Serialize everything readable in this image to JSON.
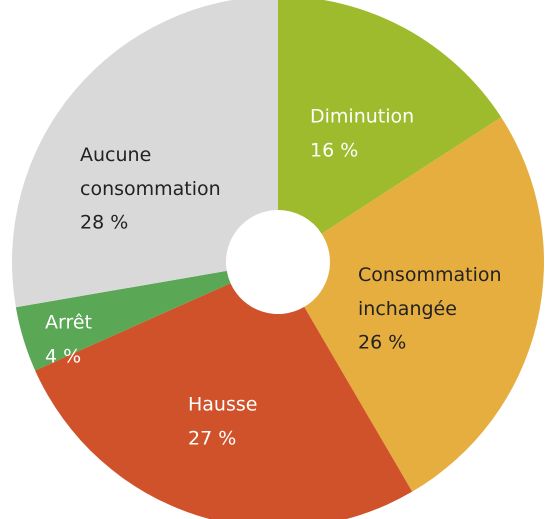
{
  "chart_data": {
    "type": "donut",
    "categories": [
      "Diminution",
      "Consommation inchangée",
      "Hausse",
      "Arrêt",
      "Aucune consommation"
    ],
    "values": [
      16,
      26,
      27,
      4,
      28
    ],
    "value_labels": [
      "16 %",
      "26 %",
      "27 %",
      "4 %",
      "28 %"
    ],
    "colors": [
      "#9dbb2c",
      "#e6ae3f",
      "#d0522a",
      "#5aa755",
      "#d9d9d9"
    ]
  }
}
